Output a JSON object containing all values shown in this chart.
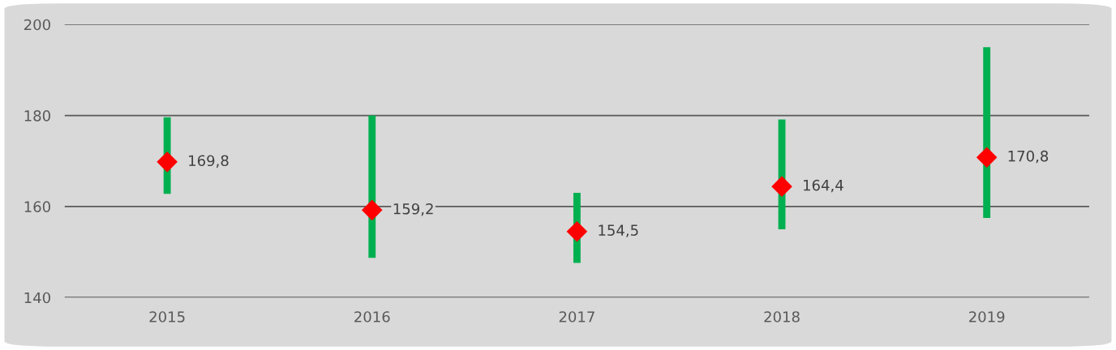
{
  "chart_data": {
    "type": "bar",
    "categories": [
      "2015",
      "2016",
      "2017",
      "2018",
      "2019"
    ],
    "series": [
      {
        "color": "#00b050",
        "base": [
          162.8,
          148.7,
          147.6,
          155.0,
          157.5
        ],
        "values": [
          16.8,
          31.3,
          15.4,
          24.1,
          37.5
        ]
      },
      {
        "type": "scatter",
        "color": "#ff0000",
        "marker": "diamond",
        "values": [
          169.8,
          159.2,
          154.5,
          164.4,
          170.8
        ],
        "value_labels": [
          "169,8",
          "159,2",
          "154,5",
          "164,4",
          "170,8"
        ]
      }
    ],
    "ylim": [
      140,
      200
    ],
    "yticks": [
      140,
      160,
      180,
      200
    ],
    "grid": "y",
    "legend": false
  }
}
